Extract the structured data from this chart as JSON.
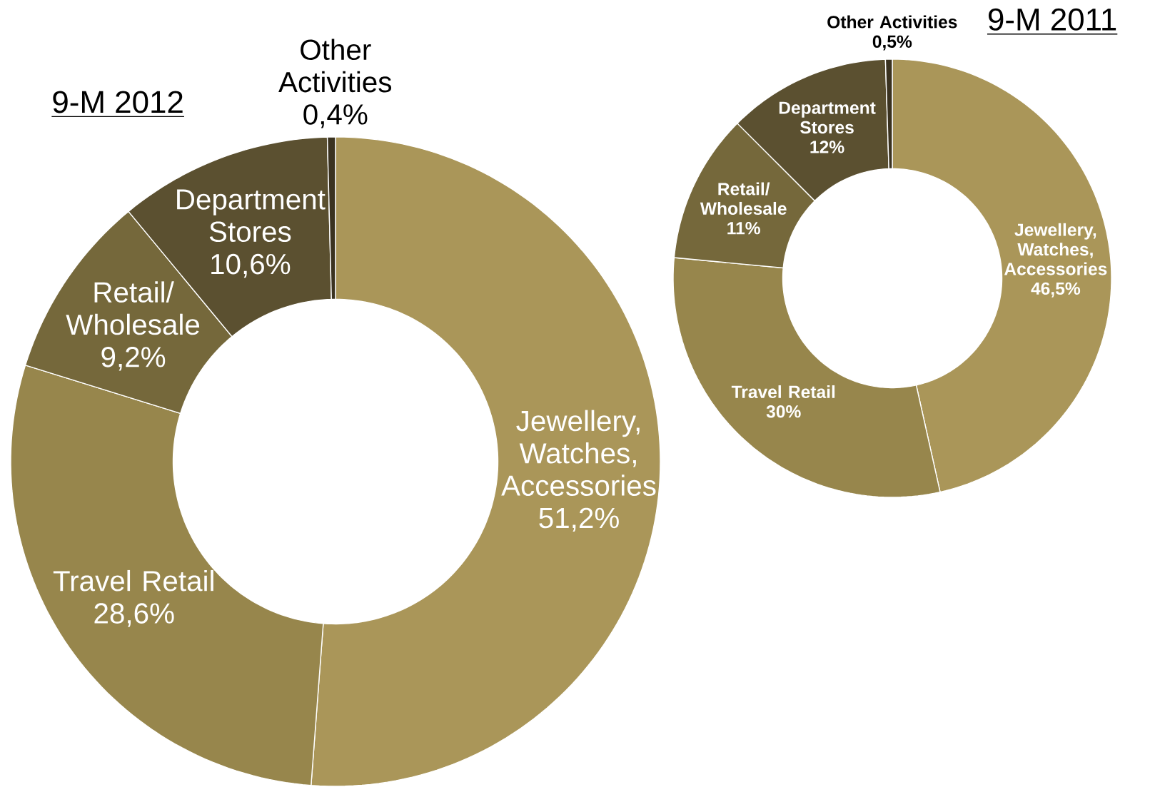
{
  "chart_data": [
    {
      "type": "donut",
      "title": "9-M 2012",
      "categories": [
        "Jewellery, Watches, Accessories",
        "Travel Retail",
        "Retail/ Wholesale",
        "Department Stores",
        "Other Activities"
      ],
      "values": [
        51.2,
        28.6,
        9.2,
        10.6,
        0.4
      ],
      "value_labels": [
        "51,2%",
        "28,6%",
        "9,2%",
        "10,6%",
        "0,4%"
      ],
      "colors": [
        "#aa9659",
        "#97864c",
        "#75683b",
        "#5b5030",
        "#3a3220"
      ]
    },
    {
      "type": "donut",
      "title": "9-M 2011",
      "categories": [
        "Jewellery, Watches, Accessories",
        "Travel Retail",
        "Retail/ Wholesale",
        "Department Stores",
        "Other Activities"
      ],
      "values": [
        46.5,
        30,
        11,
        12,
        0.5
      ],
      "value_labels": [
        "46,5%",
        "30%",
        "11%",
        "12%",
        "0,5%"
      ],
      "colors": [
        "#aa9659",
        "#97864c",
        "#75683b",
        "#5b5030",
        "#3a3220"
      ]
    }
  ]
}
